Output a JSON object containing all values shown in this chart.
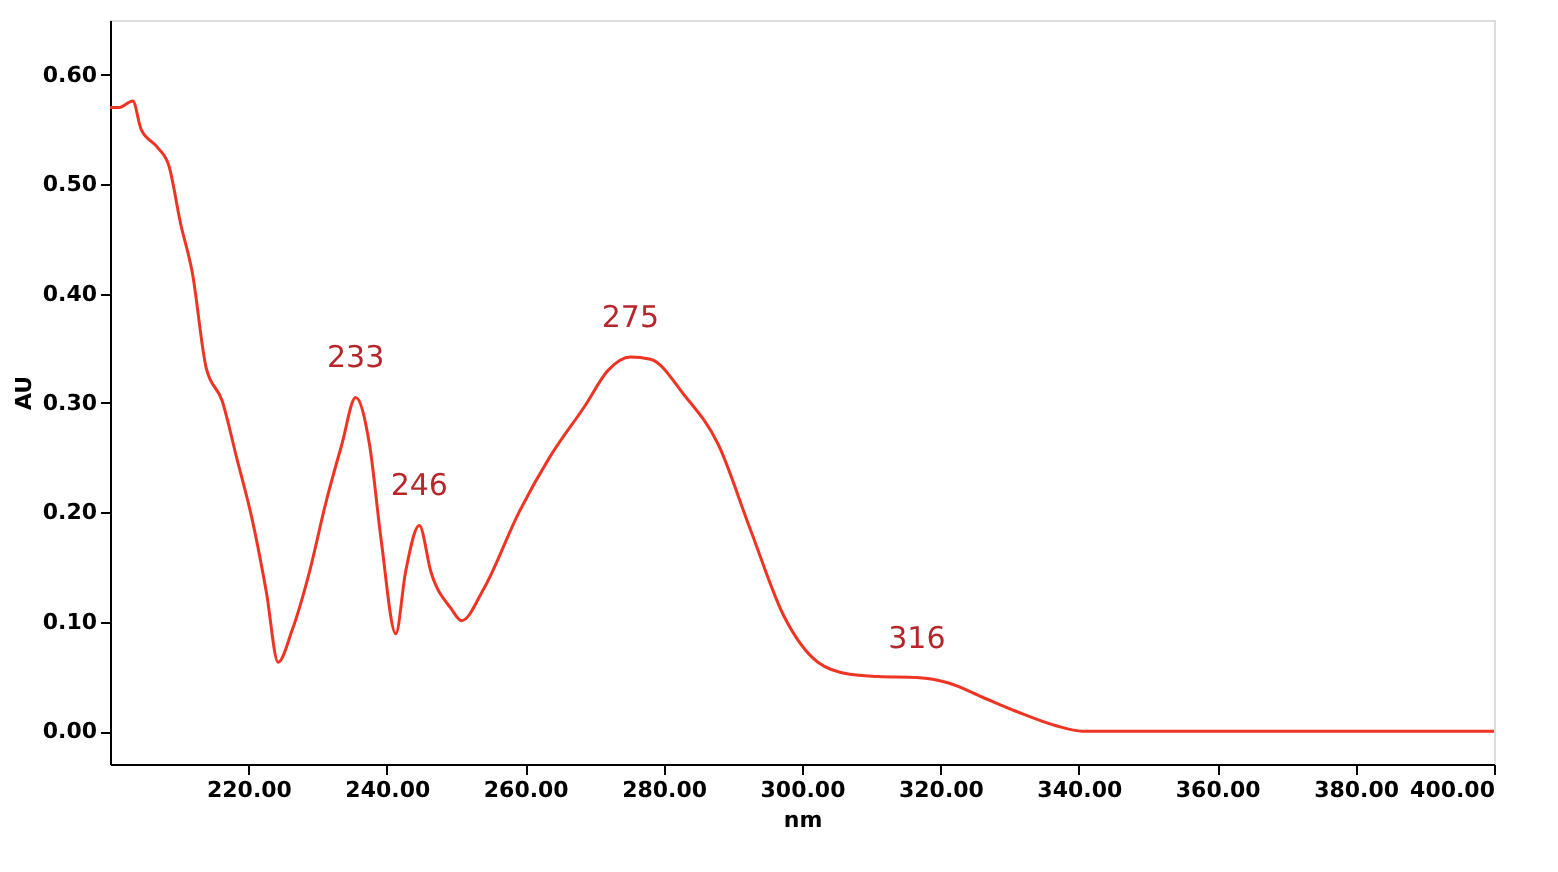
{
  "chart_data": {
    "type": "line",
    "xlabel": "nm",
    "ylabel": "AU",
    "x": [
      200,
      201.3,
      203.3,
      204.5,
      206.8,
      208.5,
      210.2,
      211.9,
      213.9,
      216.2,
      218.3,
      220.6,
      222.6,
      224.3,
      226.3,
      228.8,
      231.2,
      233.5,
      235.5,
      237.5,
      239.2,
      241.3,
      242.7,
      244.7,
      246.4,
      249.3,
      250.8,
      254,
      259.1,
      263.5,
      268.6,
      272,
      275.2,
      278.1,
      283,
      287.9,
      292.5,
      297.4,
      302.3,
      306.9,
      311,
      316.6,
      321.2,
      326.1,
      331,
      336.7,
      340.5,
      350,
      360,
      370,
      380,
      390,
      400
    ],
    "series": [
      {
        "color": "#ee3524",
        "values": [
          0.57,
          0.57,
          0.576,
          0.55,
          0.534,
          0.517,
          0.464,
          0.419,
          0.332,
          0.302,
          0.25,
          0.192,
          0.127,
          0.063,
          0.092,
          0.145,
          0.209,
          0.262,
          0.305,
          0.262,
          0.174,
          0.089,
          0.145,
          0.188,
          0.145,
          0.112,
          0.101,
          0.13,
          0.2,
          0.25,
          0.297,
          0.33,
          0.342,
          0.34,
          0.307,
          0.262,
          0.185,
          0.105,
          0.063,
          0.052,
          0.05,
          0.049,
          0.044,
          0.031,
          0.018,
          0.005,
          0.0,
          0.0,
          0.0,
          0.0,
          0.0,
          0.0,
          0.0
        ]
      }
    ],
    "xlim": [
      200,
      400
    ],
    "ylim": [
      -0.03,
      0.65
    ],
    "xticks": [
      {
        "value": 220,
        "label": "220.00"
      },
      {
        "value": 240,
        "label": "240.00"
      },
      {
        "value": 260,
        "label": "260.00"
      },
      {
        "value": 280,
        "label": "280.00"
      },
      {
        "value": 300,
        "label": "300.00"
      },
      {
        "value": 320,
        "label": "320.00"
      },
      {
        "value": 340,
        "label": "340.00"
      },
      {
        "value": 360,
        "label": "360.00"
      },
      {
        "value": 380,
        "label": "380.00"
      },
      {
        "value": 400,
        "label": "400.00"
      }
    ],
    "yticks": [
      {
        "value": 0,
        "label": "0.00"
      },
      {
        "value": 0.1,
        "label": "0.10"
      },
      {
        "value": 0.2,
        "label": "0.20"
      },
      {
        "value": 0.3,
        "label": "0.30"
      },
      {
        "value": 0.4,
        "label": "0.40"
      },
      {
        "value": 0.5,
        "label": "0.50"
      },
      {
        "value": 0.6,
        "label": "0.60"
      }
    ],
    "annotations": [
      {
        "text": "233",
        "x": 235.5,
        "y": 0.305
      },
      {
        "text": "246",
        "x": 244.7,
        "y": 0.188
      },
      {
        "text": "275",
        "x": 275.2,
        "y": 0.342
      },
      {
        "text": "316",
        "x": 316.6,
        "y": 0.049
      }
    ],
    "grid": false,
    "marker": "none",
    "line_style": "solid"
  }
}
